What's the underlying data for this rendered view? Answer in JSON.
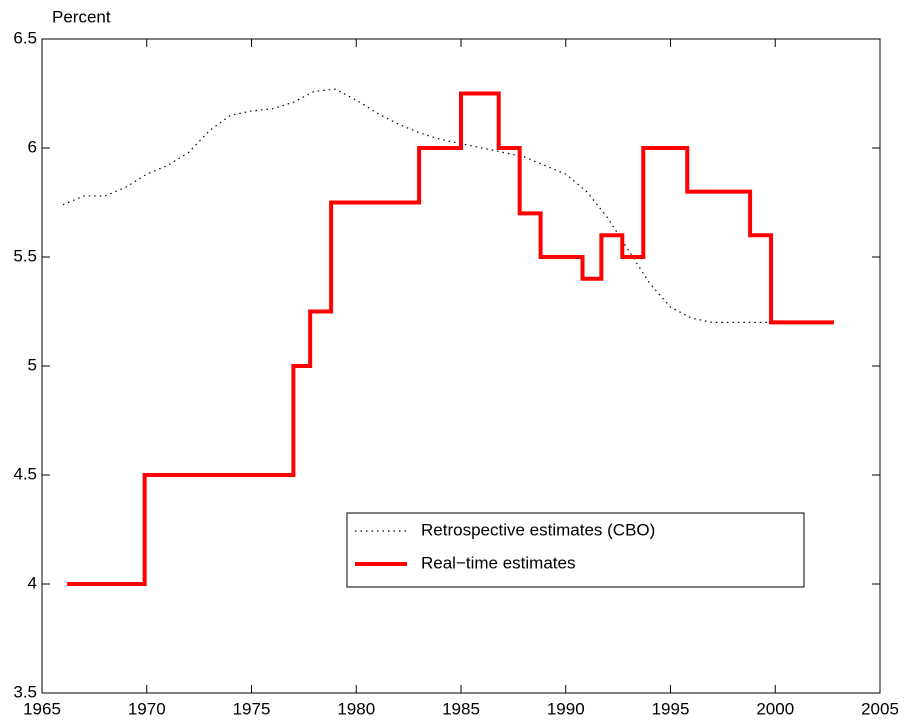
{
  "chart_data": {
    "type": "line",
    "ylabel": "Percent",
    "xlim": [
      1965,
      2005
    ],
    "xticks": [
      1965,
      1970,
      1975,
      1980,
      1985,
      1990,
      1995,
      2000,
      2005
    ],
    "ylim": [
      3.5,
      6.5
    ],
    "yticks": [
      3.5,
      4,
      4.5,
      5,
      5.5,
      6,
      6.5
    ],
    "legend": "lower right",
    "series": [
      {
        "name": "Retrospective estimates (CBO)",
        "color": "#000000",
        "style": "dotted",
        "x": [
          1966,
          1967,
          1968,
          1969,
          1970,
          1971,
          1972,
          1973,
          1974,
          1975,
          1976,
          1977,
          1978,
          1979,
          1980,
          1981,
          1982,
          1983,
          1984,
          1985,
          1986,
          1987,
          1988,
          1989,
          1990,
          1991,
          1992,
          1993,
          1994,
          1995,
          1996,
          1997,
          1998,
          1999,
          2000
        ],
        "values": [
          5.74,
          5.78,
          5.78,
          5.82,
          5.88,
          5.92,
          5.98,
          6.08,
          6.15,
          6.17,
          6.18,
          6.21,
          6.26,
          6.27,
          6.22,
          6.16,
          6.11,
          6.07,
          6.04,
          6.02,
          6.0,
          5.98,
          5.96,
          5.92,
          5.88,
          5.8,
          5.68,
          5.53,
          5.38,
          5.27,
          5.22,
          5.2,
          5.2,
          5.2,
          5.2
        ]
      },
      {
        "name": "Real−time estimates",
        "color": "#ff0000",
        "style": "solid",
        "x": [
          1966.2,
          1969.9,
          1969.9,
          1977,
          1977,
          1977.8,
          1977.8,
          1978.8,
          1978.8,
          1983,
          1983,
          1985,
          1985,
          1986.8,
          1986.8,
          1987.8,
          1987.8,
          1988.8,
          1988.8,
          1990.8,
          1990.8,
          1991.7,
          1991.7,
          1992.7,
          1992.7,
          1993.7,
          1993.7,
          1995.8,
          1995.8,
          1998.8,
          1998.8,
          1999.8,
          1999.8,
          2002.8
        ],
        "values": [
          4,
          4,
          4.5,
          4.5,
          5,
          5,
          5.25,
          5.25,
          5.75,
          5.75,
          6,
          6,
          6.25,
          6.25,
          6,
          6,
          5.7,
          5.7,
          5.5,
          5.5,
          5.4,
          5.4,
          5.6,
          5.6,
          5.5,
          5.5,
          6,
          6,
          5.8,
          5.8,
          5.6,
          5.6,
          5.2,
          5.2
        ]
      }
    ]
  }
}
